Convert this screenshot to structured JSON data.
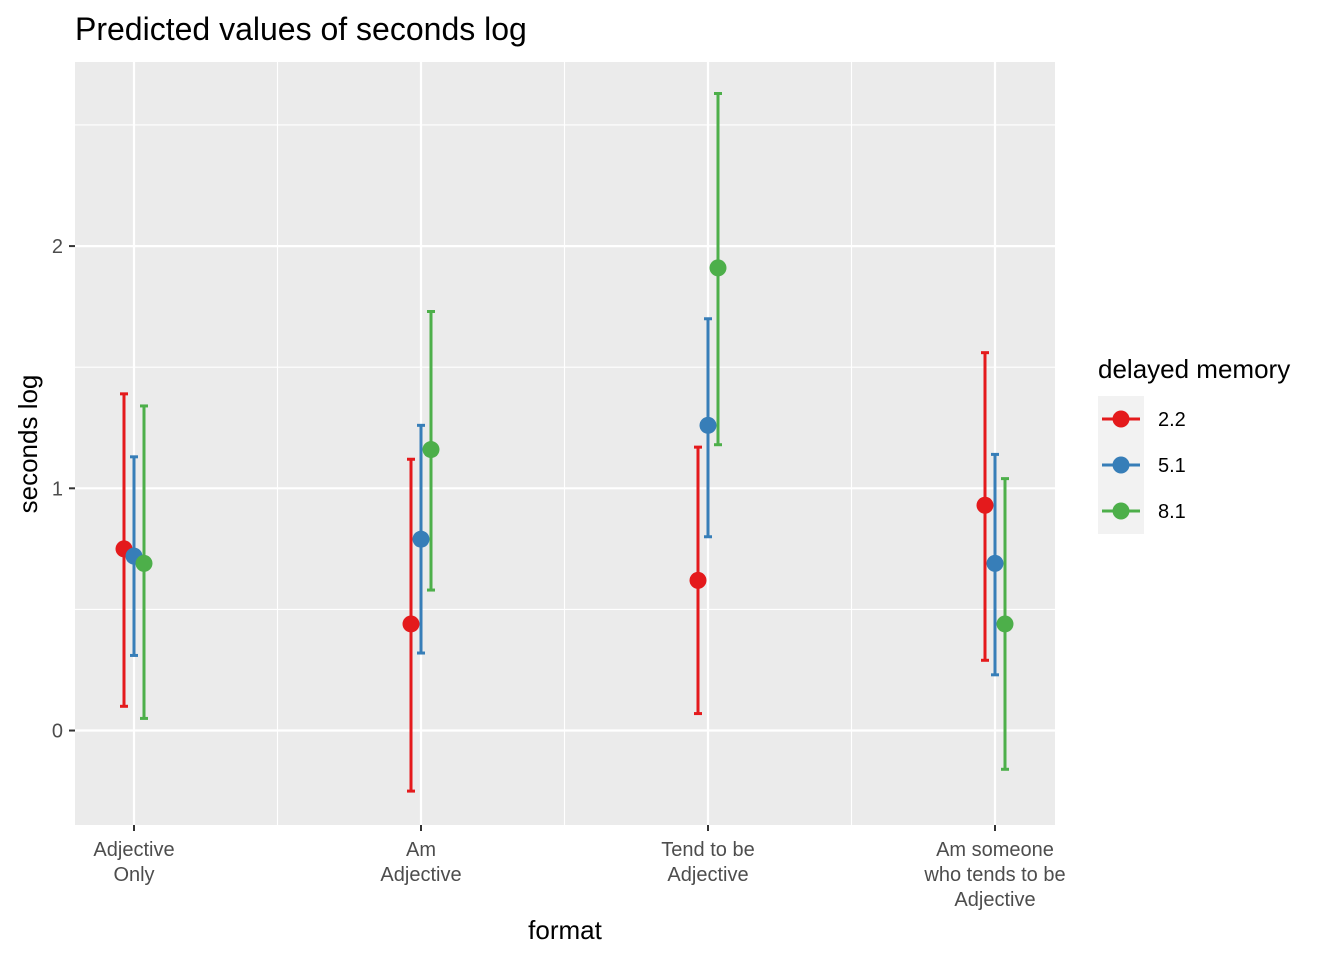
{
  "chart_data": {
    "type": "scatter",
    "title": "Predicted values of seconds log",
    "xlabel": "format",
    "ylabel": "seconds log",
    "categories": [
      [
        "Adjective",
        "Only"
      ],
      [
        "Am",
        "Adjective"
      ],
      [
        "Tend to be",
        "Adjective"
      ],
      [
        "Am someone",
        "who tends to be",
        "Adjective"
      ]
    ],
    "ylim": [
      -0.39,
      2.76
    ],
    "yticks": [
      0,
      1,
      2
    ],
    "grid": true,
    "legend": {
      "title": "delayed memory",
      "position": "right"
    },
    "series": [
      {
        "name": "2.2",
        "color": "#E41A1C",
        "values": [
          0.75,
          0.44,
          0.62,
          0.93
        ],
        "lower": [
          0.1,
          -0.25,
          0.07,
          0.29
        ],
        "upper": [
          1.39,
          1.12,
          1.17,
          1.56
        ]
      },
      {
        "name": "5.1",
        "color": "#377EB8",
        "values": [
          0.72,
          0.79,
          1.26,
          0.69
        ],
        "lower": [
          0.31,
          0.32,
          0.8,
          0.23
        ],
        "upper": [
          1.13,
          1.26,
          1.7,
          1.14
        ]
      },
      {
        "name": "8.1",
        "color": "#4DAF4A",
        "values": [
          0.69,
          1.16,
          1.91,
          0.44
        ],
        "lower": [
          0.05,
          0.58,
          1.18,
          -0.16
        ],
        "upper": [
          1.34,
          1.73,
          2.63,
          1.04
        ]
      }
    ]
  }
}
